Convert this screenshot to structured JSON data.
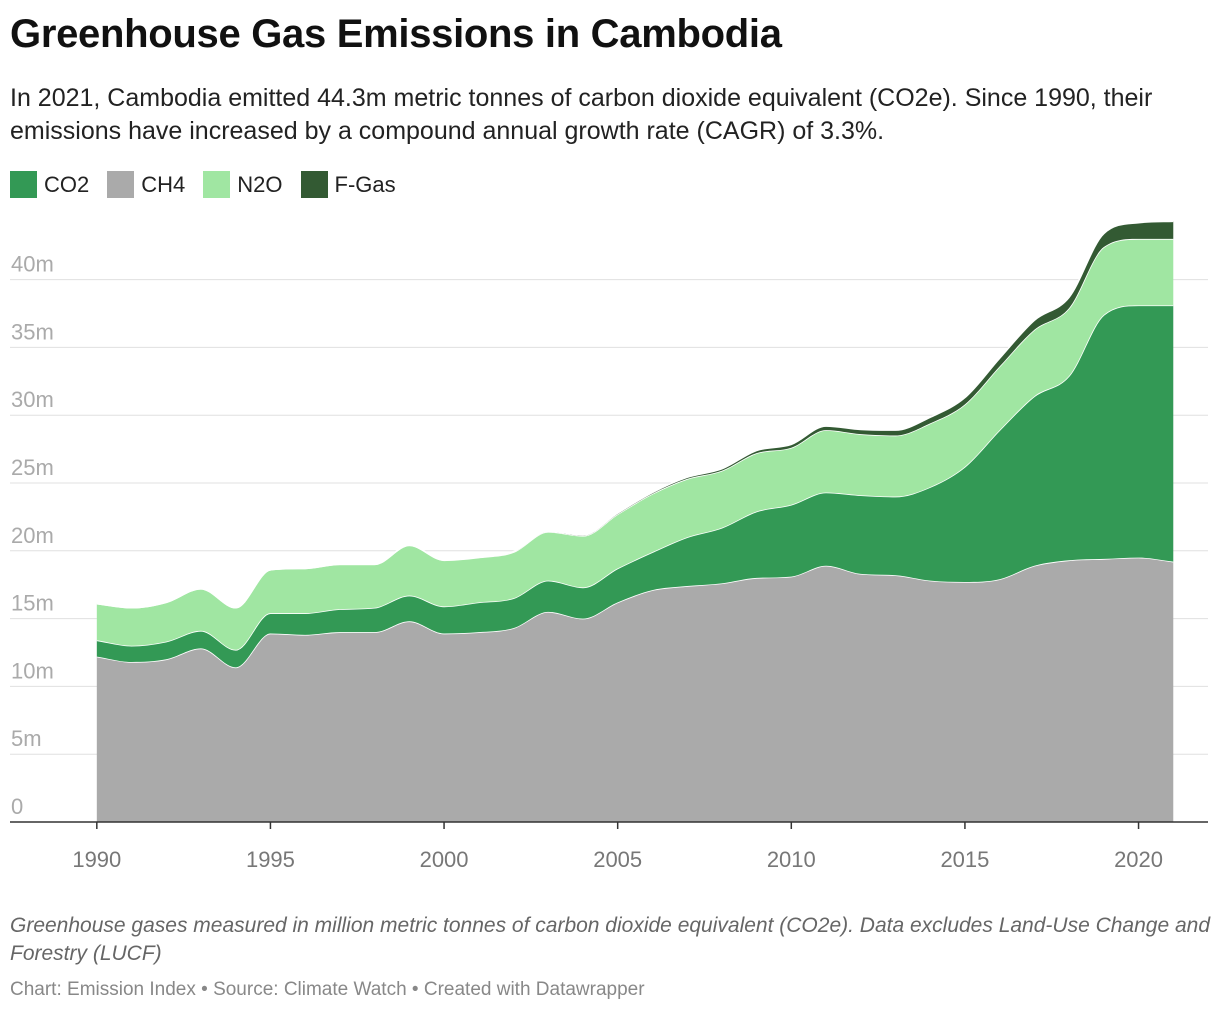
{
  "header": {
    "title": "Greenhouse Gas Emissions in Cambodia",
    "subtitle": "In 2021, Cambodia emitted 44.3m metric tonnes of carbon dioxide equivalent (CO2e). Since 1990, their emissions have increased by a compound annual growth rate (CAGR) of 3.3%."
  },
  "legend": [
    {
      "label": "CO2",
      "color": "#339955"
    },
    {
      "label": "CH4",
      "color": "#aaaaaa"
    },
    {
      "label": "N2O",
      "color": "#a0e6a2"
    },
    {
      "label": "F-Gas",
      "color": "#335a33"
    }
  ],
  "footer": {
    "notes": "Greenhouse gases measured in million metric tonnes of carbon dioxide equivalent (CO2e). Data excludes Land-Use Change and Forestry (LUCF)",
    "byline": "Chart: Emission Index • Source: Climate Watch • Created with Datawrapper"
  },
  "chart_data": {
    "type": "area",
    "stacked": true,
    "x": [
      1990,
      1991,
      1992,
      1993,
      1994,
      1995,
      1996,
      1997,
      1998,
      1999,
      2000,
      2001,
      2002,
      2003,
      2004,
      2005,
      2006,
      2007,
      2008,
      2009,
      2010,
      2011,
      2012,
      2013,
      2014,
      2015,
      2016,
      2017,
      2018,
      2019,
      2020,
      2021
    ],
    "series": [
      {
        "name": "CH4",
        "color": "#aaaaaa",
        "values": [
          12.2,
          11.8,
          12.0,
          12.8,
          11.4,
          13.9,
          13.8,
          14.0,
          14.0,
          14.8,
          13.9,
          14.0,
          14.3,
          15.5,
          15.0,
          16.2,
          17.1,
          17.4,
          17.6,
          18.0,
          18.1,
          18.9,
          18.3,
          18.2,
          17.8,
          17.7,
          17.9,
          18.9,
          19.3,
          19.4,
          19.5,
          19.2
        ]
      },
      {
        "name": "CO2",
        "color": "#339955",
        "values": [
          1.2,
          1.2,
          1.3,
          1.3,
          1.3,
          1.5,
          1.6,
          1.7,
          1.8,
          1.9,
          2.0,
          2.2,
          2.2,
          2.3,
          2.3,
          2.5,
          2.8,
          3.6,
          4.1,
          4.9,
          5.3,
          5.4,
          5.8,
          5.8,
          6.9,
          8.5,
          11.0,
          12.5,
          13.6,
          18.0,
          18.6,
          18.9
        ]
      },
      {
        "name": "N2O",
        "color": "#a0e6a2",
        "values": [
          2.7,
          2.8,
          2.9,
          3.1,
          3.1,
          3.2,
          3.3,
          3.3,
          3.2,
          3.7,
          3.4,
          3.3,
          3.4,
          3.6,
          3.8,
          4.0,
          4.3,
          4.3,
          4.2,
          4.3,
          4.2,
          4.6,
          4.5,
          4.5,
          4.7,
          4.6,
          4.7,
          4.9,
          5.0,
          5.0,
          4.9,
          4.9
        ]
      },
      {
        "name": "F-Gas",
        "color": "#335a33",
        "values": [
          0.0,
          0.0,
          0.0,
          0.0,
          0.0,
          0.0,
          0.0,
          0.0,
          0.0,
          0.0,
          0.02,
          0.03,
          0.04,
          0.05,
          0.06,
          0.08,
          0.1,
          0.12,
          0.15,
          0.2,
          0.25,
          0.3,
          0.35,
          0.4,
          0.45,
          0.5,
          0.6,
          0.7,
          0.8,
          1.0,
          1.2,
          1.3
        ]
      }
    ],
    "xticks": [
      "1990",
      "1995",
      "2000",
      "2005",
      "2010",
      "2015",
      "2020"
    ],
    "yticks": [
      "0",
      "5m",
      "10m",
      "15m",
      "20m",
      "25m",
      "30m",
      "35m",
      "40m"
    ],
    "ylim": [
      0,
      45
    ],
    "xlim": [
      1987.5,
      2022
    ],
    "grid": true,
    "legend_position": "top-left"
  }
}
